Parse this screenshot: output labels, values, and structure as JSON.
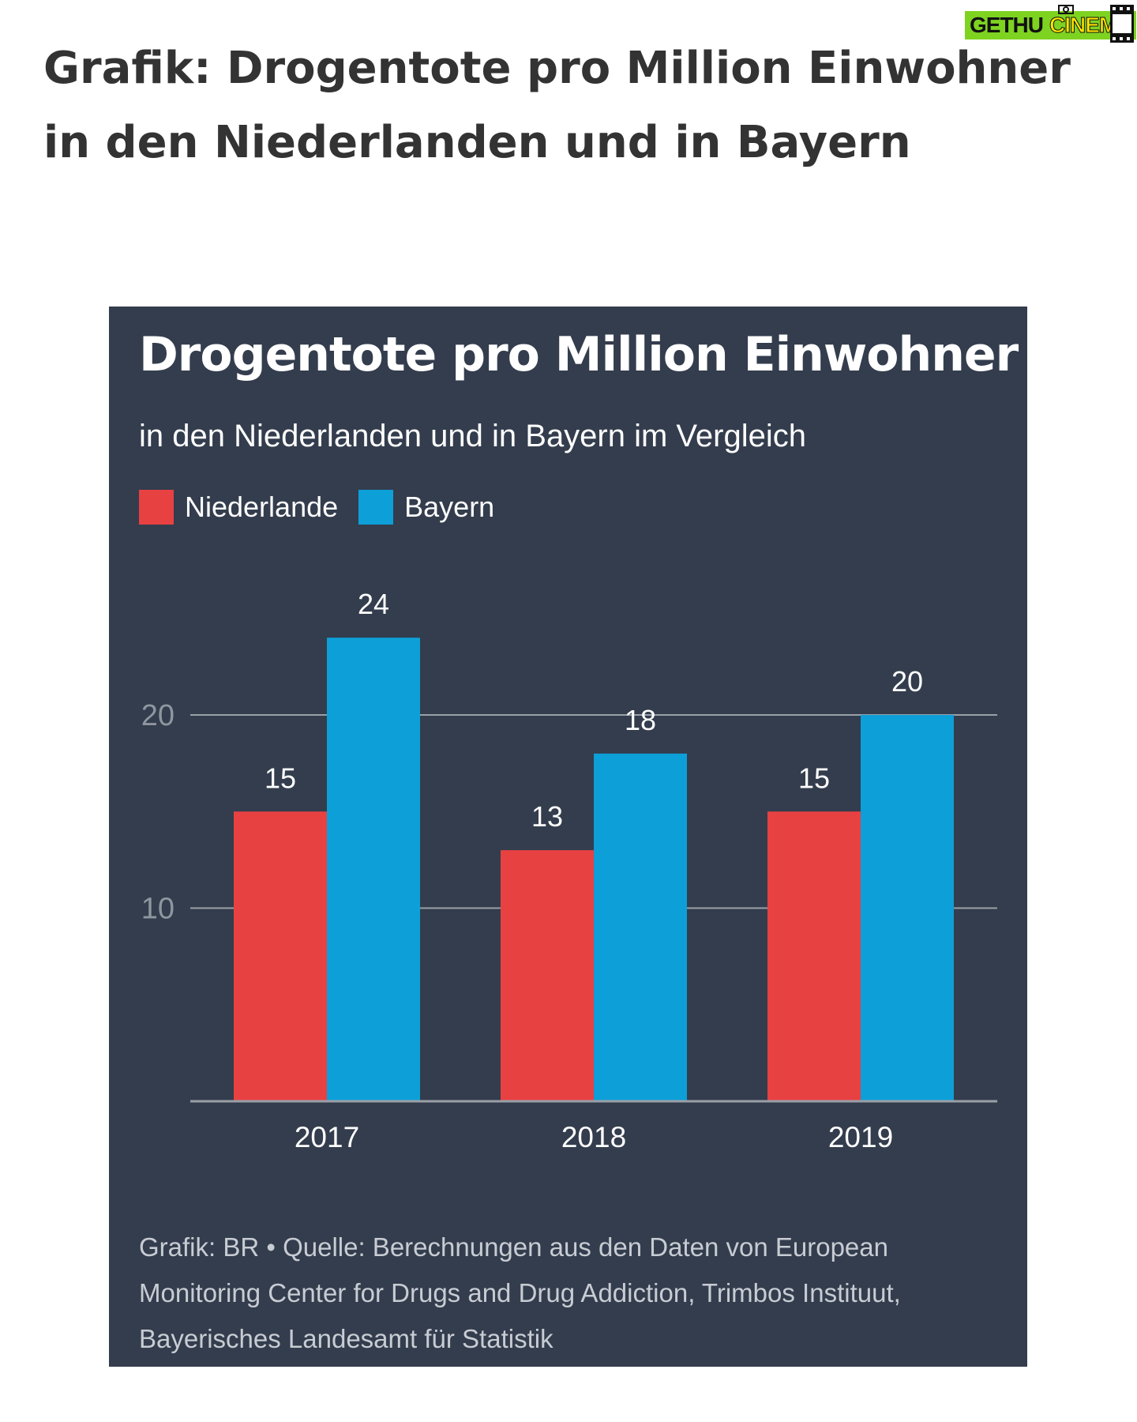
{
  "watermark": {
    "part1": "GETHU",
    "part2": "CINEMA",
    "icon": "film-strip-icon"
  },
  "page": {
    "title": "Grafik: Drogentote pro Million Einwohner in den Niederlanden und in Bayern"
  },
  "colors": {
    "card": "#333d4d",
    "niederlande": "#e84142",
    "bayern": "#0d9fd8",
    "grid": "#9aa0a8"
  },
  "chart_data": {
    "type": "bar",
    "title": "Drogentote pro Million Einwohner",
    "subtitle": "in den Niederlanden und in Bayern im Vergleich",
    "categories": [
      "2017",
      "2018",
      "2019"
    ],
    "series": [
      {
        "name": "Niederlande",
        "color": "#e84142",
        "values": [
          15,
          13,
          15
        ]
      },
      {
        "name": "Bayern",
        "color": "#0d9fd8",
        "values": [
          24,
          18,
          20
        ]
      }
    ],
    "y_ticks": [
      10,
      20
    ],
    "ylim": [
      0,
      24
    ],
    "grid": true,
    "legend_position": "top-left",
    "data_labels": true,
    "source": "Grafik: BR • Quelle: Berechnungen aus den Daten von European Monitoring Center for Drugs and Drug Addiction, Trimbos Instituut, Bayerisches Landesamt für Statistik"
  }
}
